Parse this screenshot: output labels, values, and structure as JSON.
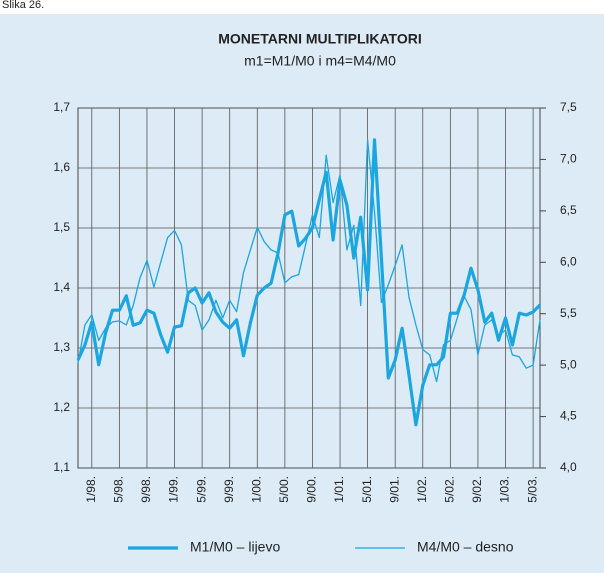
{
  "chart_data": {
    "type": "line",
    "figure_label": "Slika 26.",
    "title": "MONETARNI MULTIPLIKATORI",
    "subtitle": "m1=M1/M0 i m4=M4/M0",
    "categories": [
      null,
      null,
      "1/98.",
      null,
      null,
      null,
      "5/98.",
      null,
      null,
      null,
      "9/98.",
      null,
      null,
      null,
      "1/99.",
      null,
      null,
      null,
      "5/99.",
      null,
      null,
      null,
      "9/99.",
      null,
      null,
      null,
      "1/00.",
      null,
      null,
      null,
      "5/00.",
      null,
      null,
      null,
      "9/00.",
      null,
      null,
      null,
      "1/01.",
      null,
      null,
      null,
      "5/01.",
      null,
      null,
      null,
      "9/01.",
      null,
      null,
      null,
      "1/02.",
      null,
      null,
      null,
      "5/02.",
      null,
      null,
      null,
      "9/02.",
      null,
      null,
      null,
      "1/03.",
      null,
      null,
      null,
      "5/03.",
      null
    ],
    "series": [
      {
        "name": "M1/M0 – lijevo",
        "color": "#1ba6df",
        "width": 3.2,
        "axis": "y",
        "values": [
          1.28,
          1.305,
          1.343,
          1.272,
          1.325,
          1.363,
          1.363,
          1.387,
          1.338,
          1.342,
          1.363,
          1.358,
          1.322,
          1.293,
          1.335,
          1.337,
          1.392,
          1.4,
          1.375,
          1.392,
          1.36,
          1.343,
          1.333,
          1.347,
          1.287,
          1.342,
          1.388,
          1.4,
          1.408,
          1.458,
          1.522,
          1.528,
          1.47,
          1.483,
          1.5,
          1.547,
          1.593,
          1.48,
          1.58,
          1.538,
          1.45,
          1.518,
          1.397,
          1.647,
          1.45,
          1.25,
          1.28,
          1.333,
          1.255,
          1.172,
          1.238,
          1.272,
          1.272,
          1.285,
          1.358,
          1.358,
          1.388,
          1.433,
          1.397,
          1.343,
          1.358,
          1.313,
          1.35,
          1.305,
          1.358,
          1.355,
          1.36,
          1.372
        ]
      },
      {
        "name": "M4/M0 – desno",
        "color": "#1ba6df",
        "width": 1.3,
        "axis": "y2",
        "values": [
          5.02,
          5.39,
          5.49,
          5.24,
          5.36,
          5.42,
          5.43,
          5.39,
          5.58,
          5.85,
          6.02,
          5.76,
          6.0,
          6.24,
          6.31,
          6.17,
          5.63,
          5.58,
          5.34,
          5.44,
          5.63,
          5.46,
          5.63,
          5.52,
          5.9,
          6.12,
          6.34,
          6.2,
          6.12,
          6.09,
          5.8,
          5.86,
          5.88,
          6.17,
          6.46,
          6.24,
          7.04,
          6.58,
          6.85,
          6.12,
          6.36,
          5.58,
          7.19,
          6.49,
          5.61,
          5.78,
          5.97,
          6.17,
          5.66,
          5.39,
          5.15,
          5.1,
          4.84,
          5.2,
          5.24,
          5.46,
          5.67,
          5.54,
          5.1,
          5.39,
          5.44,
          5.29,
          5.34,
          5.1,
          5.08,
          4.97,
          5.0,
          5.44
        ]
      }
    ],
    "ylim": [
      1.1,
      1.7
    ],
    "yticks": [
      {
        "value": 1.1,
        "label": "1,1"
      },
      {
        "value": 1.2,
        "label": "1,2"
      },
      {
        "value": 1.3,
        "label": "1,3"
      },
      {
        "value": 1.4,
        "label": "1,4"
      },
      {
        "value": 1.5,
        "label": "1,5"
      },
      {
        "value": 1.6,
        "label": "1,6"
      },
      {
        "value": 1.7,
        "label": "1,7"
      }
    ],
    "y2lim": [
      4.0,
      7.5
    ],
    "y2ticks": [
      {
        "value": 4.0,
        "label": "4,0"
      },
      {
        "value": 4.5,
        "label": "4,5"
      },
      {
        "value": 5.0,
        "label": "5,0"
      },
      {
        "value": 5.5,
        "label": "5,5"
      },
      {
        "value": 6.0,
        "label": "6,0"
      },
      {
        "value": 6.5,
        "label": "6,5"
      },
      {
        "value": 7.0,
        "label": "7,0"
      },
      {
        "value": 7.5,
        "label": "7,5"
      }
    ],
    "grid": true,
    "legend": "bottom"
  }
}
